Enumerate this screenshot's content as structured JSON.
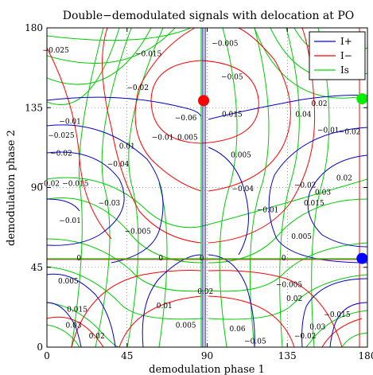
{
  "chart_data": {
    "type": "line",
    "title": "Double−demodulated signals with delocation at PO",
    "xlabel": "demodulation phase 1",
    "ylabel": "demodulation phase 2",
    "xlim": [
      0,
      180
    ],
    "ylim": [
      0,
      180
    ],
    "xticks": [
      0,
      45,
      90,
      135,
      180
    ],
    "yticks": [
      0,
      45,
      90,
      135,
      180
    ],
    "grid": true,
    "legend_position": "top-right",
    "series": [
      {
        "name": "I+",
        "color": "#0000ff"
      },
      {
        "name": "I−",
        "color": "#ff0000"
      },
      {
        "name": "Is",
        "color": "#00dd00"
      }
    ],
    "contour_labels": [
      {
        "text": "0.005",
        "x": 12,
        "y": 36
      },
      {
        "text": "0.015",
        "x": 17,
        "y": 20
      },
      {
        "text": "0.03",
        "x": 15,
        "y": 11
      },
      {
        "text": "0.02",
        "x": 28,
        "y": 5
      },
      {
        "text": "0.01",
        "x": 66,
        "y": 22
      },
      {
        "text": "0.005",
        "x": 78,
        "y": 11
      },
      {
        "text": "0.02",
        "x": 89,
        "y": 30
      },
      {
        "text": "0",
        "x": 64,
        "y": 49
      },
      {
        "text": "0",
        "x": 87,
        "y": 49
      },
      {
        "text": "0",
        "x": 18,
        "y": 49
      },
      {
        "text": "−0.005",
        "x": 51,
        "y": 64
      },
      {
        "text": "−0.01",
        "x": 13,
        "y": 70
      },
      {
        "text": "−0.03",
        "x": 35,
        "y": 80
      },
      {
        "text": "−0.015",
        "x": 16,
        "y": 91
      },
      {
        "text": "−0.02",
        "x": 1,
        "y": 91
      },
      {
        "text": "−0.04",
        "x": 40,
        "y": 102
      },
      {
        "text": "−0.02",
        "x": 8,
        "y": 108
      },
      {
        "text": "−0.025",
        "x": 8,
        "y": 118
      },
      {
        "text": "−0.01",
        "x": 13,
        "y": 126
      },
      {
        "text": "0.01",
        "x": 45,
        "y": 112
      },
      {
        "text": "−0.01",
        "x": 65,
        "y": 117
      },
      {
        "text": "0.005",
        "x": 79,
        "y": 117
      },
      {
        "text": "−0.06",
        "x": 78,
        "y": 128
      },
      {
        "text": "−0.02",
        "x": 51,
        "y": 145
      },
      {
        "text": "−0.015",
        "x": 57,
        "y": 164
      },
      {
        "text": "−0.025",
        "x": 5,
        "y": 166
      },
      {
        "text": "−0.005",
        "x": 100,
        "y": 170
      },
      {
        "text": "−0.05",
        "x": 104,
        "y": 151
      },
      {
        "text": "0.015",
        "x": 104,
        "y": 130
      },
      {
        "text": "0.005",
        "x": 109,
        "y": 107
      },
      {
        "text": "−0.04",
        "x": 110,
        "y": 88
      },
      {
        "text": "0.02",
        "x": 153,
        "y": 136
      },
      {
        "text": "0.04",
        "x": 144,
        "y": 130
      },
      {
        "text": "−0.01",
        "x": 158,
        "y": 121
      },
      {
        "text": "−0.02",
        "x": 170,
        "y": 120
      },
      {
        "text": "0.02",
        "x": 167,
        "y": 94
      },
      {
        "text": "−0.02",
        "x": 145,
        "y": 90
      },
      {
        "text": "0.015",
        "x": 150,
        "y": 80
      },
      {
        "text": "−0.01",
        "x": 124,
        "y": 76
      },
      {
        "text": "0.03",
        "x": 155,
        "y": 86
      },
      {
        "text": "0.005",
        "x": 143,
        "y": 61
      },
      {
        "text": "0",
        "x": 133,
        "y": 49
      },
      {
        "text": "−0.005",
        "x": 136,
        "y": 34
      },
      {
        "text": "0.02",
        "x": 139,
        "y": 26
      },
      {
        "text": "−0.015",
        "x": 163,
        "y": 17
      },
      {
        "text": "0.03",
        "x": 152,
        "y": 10
      },
      {
        "text": "−0.02",
        "x": 145,
        "y": 5
      },
      {
        "text": "−0.05",
        "x": 117,
        "y": 2
      },
      {
        "text": "0.06",
        "x": 107,
        "y": 9
      }
    ],
    "markers": [
      {
        "x": 88,
        "y": 139,
        "color": "#ff0000"
      },
      {
        "x": 177,
        "y": 140,
        "color": "#00ee00"
      },
      {
        "x": 177,
        "y": 50,
        "color": "#0000ff"
      }
    ]
  }
}
